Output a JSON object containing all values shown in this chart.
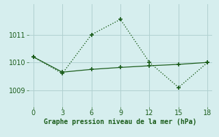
{
  "line1_x": [
    0,
    3,
    6,
    9,
    12,
    15,
    18
  ],
  "line1_y": [
    1010.2,
    1009.6,
    1011.0,
    1011.55,
    1010.0,
    1009.1,
    1010.0
  ],
  "line2_x": [
    0,
    3,
    6,
    9,
    12,
    15,
    18
  ],
  "line2_y": [
    1010.2,
    1009.65,
    1009.75,
    1009.82,
    1009.88,
    1009.93,
    1010.0
  ],
  "line_color": "#1a5c1a",
  "bg_color": "#d6eeee",
  "grid_color": "#b0d0d0",
  "xlabel": "Graphe pression niveau de la mer (hPa)",
  "xlabel_color": "#1a5c1a",
  "yticks": [
    1009,
    1010,
    1011
  ],
  "xticks": [
    0,
    3,
    6,
    9,
    12,
    15,
    18
  ],
  "ylim": [
    1008.4,
    1012.1
  ],
  "xlim": [
    -0.5,
    18.5
  ]
}
